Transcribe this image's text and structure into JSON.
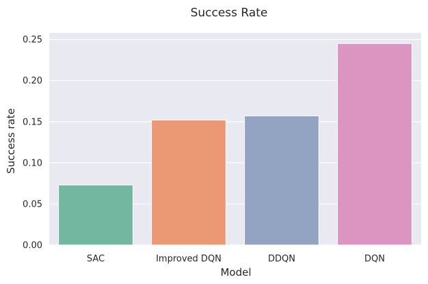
{
  "chart_data": {
    "type": "bar",
    "title": "Success Rate",
    "xlabel": "Model",
    "ylabel": "Success rate",
    "categories": [
      "SAC",
      "Improved DQN",
      "DDQN",
      "DQN"
    ],
    "values": [
      0.073,
      0.152,
      0.157,
      0.245
    ],
    "colors": [
      "#73b7a1",
      "#eb9874",
      "#93a4c3",
      "#dc95c0"
    ],
    "ylim": [
      0,
      0.258
    ],
    "yticks": [
      "0.00",
      "0.05",
      "0.10",
      "0.15",
      "0.20",
      "0.25"
    ],
    "grid": true,
    "background": "#e9e9f1"
  }
}
